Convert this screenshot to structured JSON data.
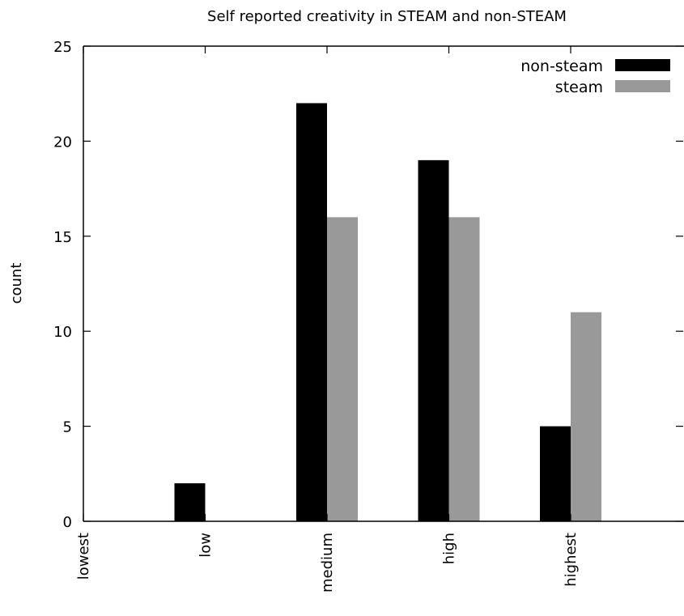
{
  "chart_data": {
    "type": "bar",
    "title": "Self reported creativity in STEAM and non-STEAM",
    "xlabel": "",
    "ylabel": "count",
    "categories": [
      "lowest",
      "low",
      "medium",
      "high",
      "highest"
    ],
    "series": [
      {
        "name": "non-steam",
        "color": "#000000",
        "values": [
          0,
          2,
          22,
          19,
          5
        ]
      },
      {
        "name": "steam",
        "color": "#999999",
        "values": [
          0,
          0,
          16,
          16,
          11
        ]
      }
    ],
    "ylim": [
      0,
      25
    ],
    "yticks": [
      0,
      5,
      10,
      15,
      20,
      25
    ],
    "grid": false,
    "legend_position": "top-right"
  }
}
